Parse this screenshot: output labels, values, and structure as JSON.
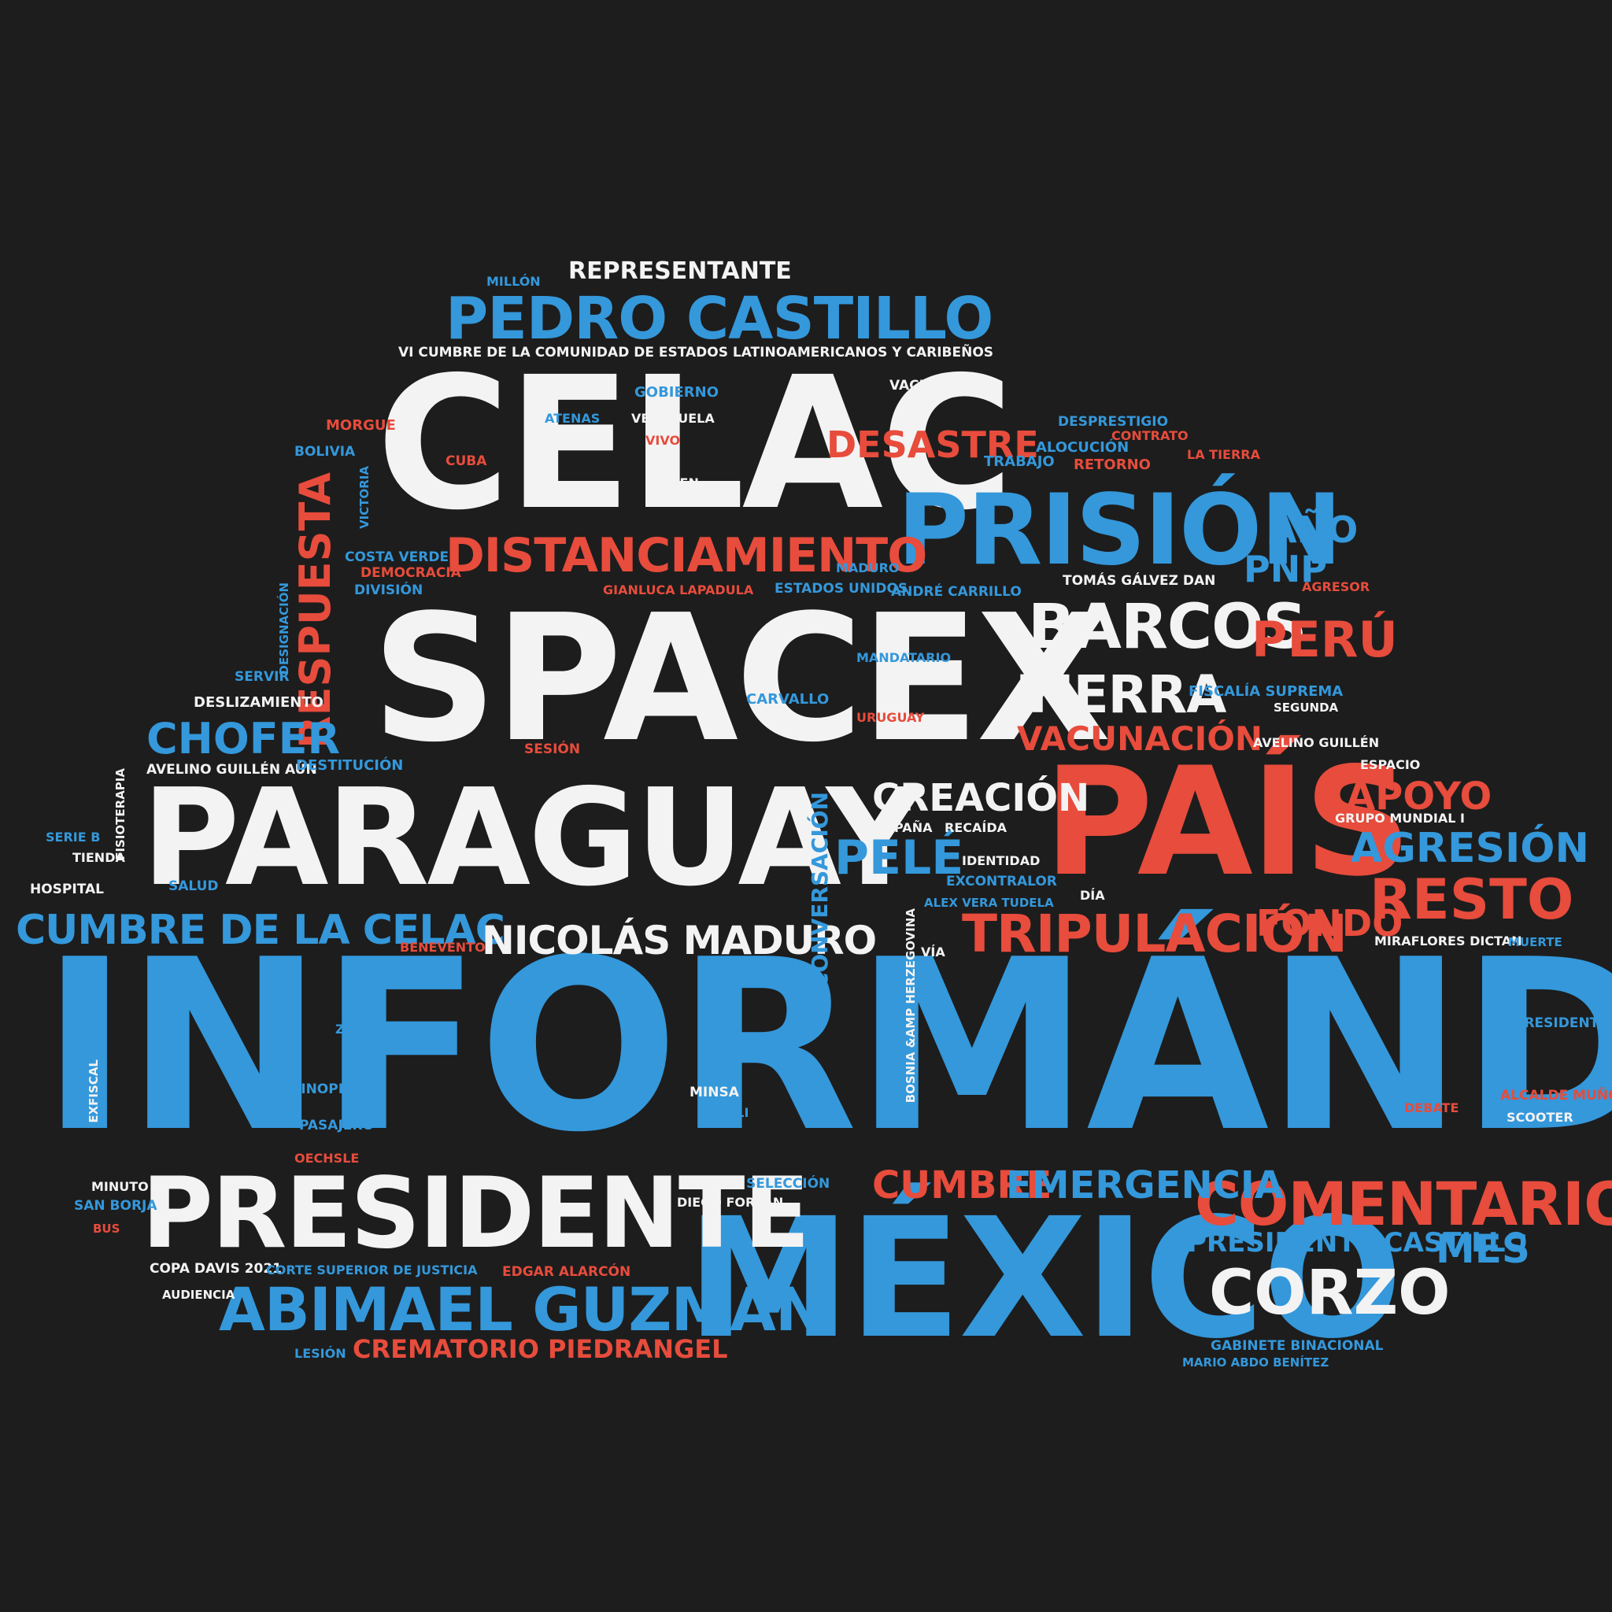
{
  "colors": {
    "background": "#1d1d1d",
    "white": "#f3f3f3",
    "blue": "#3498db",
    "red": "#e74c3c"
  },
  "words": [
    {
      "text": "INFORMÁNDOTE",
      "color": "blue"
    },
    {
      "text": "CELAC",
      "color": "white"
    },
    {
      "text": "SPACEX",
      "color": "white"
    },
    {
      "text": "PARAGUAY",
      "color": "white"
    },
    {
      "text": "PAÍS",
      "color": "red"
    },
    {
      "text": "MÉXICO",
      "color": "blue"
    },
    {
      "text": "PRESIDENTE",
      "color": "white"
    },
    {
      "text": "PRISIÓN",
      "color": "blue"
    },
    {
      "text": "PEDRO CASTILLO",
      "color": "blue"
    },
    {
      "text": "DISTANCIAMIENTO",
      "color": "red"
    },
    {
      "text": "RESPUESTA",
      "color": "red"
    },
    {
      "text": "BARCOS",
      "color": "white"
    },
    {
      "text": "TIERRA",
      "color": "white"
    },
    {
      "text": "PERÚ",
      "color": "red"
    },
    {
      "text": "COMENTARIO",
      "color": "red"
    },
    {
      "text": "ABIMAEL GUZMÁN",
      "color": "blue"
    },
    {
      "text": "CORZO",
      "color": "white"
    },
    {
      "text": "TRIPULACIÓN",
      "color": "red"
    },
    {
      "text": "RESTO",
      "color": "red"
    },
    {
      "text": "CUMBRE DE LA CELAC",
      "color": "blue"
    },
    {
      "text": "NICOLÁS MADURO",
      "color": "white"
    },
    {
      "text": "CHOFER",
      "color": "blue"
    },
    {
      "text": "DESASTRE",
      "color": "red"
    },
    {
      "text": "CREACIÓN",
      "color": "white"
    },
    {
      "text": "PELÉ",
      "color": "blue"
    },
    {
      "text": "AGRESIÓN",
      "color": "blue"
    },
    {
      "text": "APOYO",
      "color": "red"
    },
    {
      "text": "VACUNACIÓN",
      "color": "red"
    },
    {
      "text": "CUMBRE",
      "color": "red"
    },
    {
      "text": "EMERGENCIA",
      "color": "blue"
    },
    {
      "text": "AÑO",
      "color": "blue"
    },
    {
      "text": "PNP",
      "color": "blue"
    },
    {
      "text": "FONDO",
      "color": "red"
    },
    {
      "text": "MES",
      "color": "blue"
    },
    {
      "text": "PRESIDENTE CASTILLO",
      "color": "blue"
    },
    {
      "text": "CREMATORIO PIEDRANGEL",
      "color": "red"
    },
    {
      "text": "REPRESENTANTE",
      "color": "white"
    },
    {
      "text": "CONVERSACIÓN",
      "color": "blue"
    },
    {
      "text": "VI CUMBRE DE LA COMUNIDAD DE ESTADOS LATINOAMERICANOS Y CARIBEÑOS",
      "color": "white"
    },
    {
      "text": "MILLÓN",
      "color": "blue"
    },
    {
      "text": "GOBIERNO",
      "color": "blue"
    },
    {
      "text": "VACUNA",
      "color": "white"
    },
    {
      "text": "ATENAS",
      "color": "blue"
    },
    {
      "text": "VENEZUELA",
      "color": "white"
    },
    {
      "text": "MORGUE",
      "color": "red"
    },
    {
      "text": "VIVO",
      "color": "red"
    },
    {
      "text": "BOLIVIA",
      "color": "blue"
    },
    {
      "text": "CUBA",
      "color": "red"
    },
    {
      "text": "VICTORIA",
      "color": "blue"
    },
    {
      "text": "JOVEN",
      "color": "white"
    },
    {
      "text": "DESPRESTIGIO",
      "color": "blue"
    },
    {
      "text": "CONTRATO",
      "color": "red"
    },
    {
      "text": "ALOCUCIÓN",
      "color": "blue"
    },
    {
      "text": "TRABAJO",
      "color": "blue"
    },
    {
      "text": "RETORNO",
      "color": "red"
    },
    {
      "text": "LA TIERRA",
      "color": "red"
    },
    {
      "text": "COSTA VERDE",
      "color": "blue"
    },
    {
      "text": "DEMOCRACIA",
      "color": "red"
    },
    {
      "text": "DIVISIÓN",
      "color": "blue"
    },
    {
      "text": "MADURO",
      "color": "blue"
    },
    {
      "text": "GIANLUCA LAPADULA",
      "color": "red"
    },
    {
      "text": "ESTADOS UNIDOS",
      "color": "blue"
    },
    {
      "text": "ANDRÉ CARRILLO",
      "color": "blue"
    },
    {
      "text": "TOMÁS GÁLVEZ DAN",
      "color": "white"
    },
    {
      "text": "AGRESOR",
      "color": "red"
    },
    {
      "text": "DESIGNACIÓN",
      "color": "blue"
    },
    {
      "text": "MANDATARIO",
      "color": "blue"
    },
    {
      "text": "SERVIR",
      "color": "blue"
    },
    {
      "text": "FISCALÍA SUPREMA",
      "color": "blue"
    },
    {
      "text": "DESLIZAMIENTO",
      "color": "white"
    },
    {
      "text": "CARVALLO",
      "color": "blue"
    },
    {
      "text": "SEGUNDA",
      "color": "white"
    },
    {
      "text": "URUGUAY",
      "color": "red"
    },
    {
      "text": "AVELINO GUILLÉN",
      "color": "white"
    },
    {
      "text": "SESIÓN",
      "color": "red"
    },
    {
      "text": "AVELINO GUILLÉN AÚN",
      "color": "white"
    },
    {
      "text": "DESTITUCIÓN",
      "color": "blue"
    },
    {
      "text": "ESPACIO",
      "color": "white"
    },
    {
      "text": "FISIOTERAPIA",
      "color": "white"
    },
    {
      "text": "GRUPO MUNDIAL I",
      "color": "white"
    },
    {
      "text": "CAMPAÑA",
      "color": "white"
    },
    {
      "text": "RECAÍDA",
      "color": "white"
    },
    {
      "text": "SERIE B",
      "color": "blue"
    },
    {
      "text": "TIENDA",
      "color": "white"
    },
    {
      "text": "IDENTIDAD",
      "color": "white"
    },
    {
      "text": "EXCONTRALOR",
      "color": "blue"
    },
    {
      "text": "HOSPITAL",
      "color": "white"
    },
    {
      "text": "SALUD",
      "color": "blue"
    },
    {
      "text": "DÍA",
      "color": "white"
    },
    {
      "text": "ALEX VERA TUDELA",
      "color": "blue"
    },
    {
      "text": "BOSNIA &AMP HERZEGOVINA",
      "color": "white"
    },
    {
      "text": "MIRAFLORES DICTAN",
      "color": "white"
    },
    {
      "text": "MUERTE",
      "color": "blue"
    },
    {
      "text": "BENEVENTO",
      "color": "red"
    },
    {
      "text": "VÍA",
      "color": "white"
    },
    {
      "text": "ZOOM",
      "color": "blue"
    },
    {
      "text": "PRESIDENT",
      "color": "blue"
    },
    {
      "text": "EXFISCAL",
      "color": "white"
    },
    {
      "text": "SINOPHARM",
      "color": "blue"
    },
    {
      "text": "MINSA",
      "color": "white"
    },
    {
      "text": "ALCALDE MUÑOZ",
      "color": "red"
    },
    {
      "text": "DEBATE",
      "color": "red"
    },
    {
      "text": "SCOOTER",
      "color": "white"
    },
    {
      "text": "PASAJERO",
      "color": "blue"
    },
    {
      "text": "ASCOLI",
      "color": "blue"
    },
    {
      "text": "OECHSLE",
      "color": "red"
    },
    {
      "text": "MINUTO",
      "color": "white"
    },
    {
      "text": "SELECCIÓN",
      "color": "blue"
    },
    {
      "text": "SAN BORJA",
      "color": "blue"
    },
    {
      "text": "DIEGO FORLÁN",
      "color": "white"
    },
    {
      "text": "BUS",
      "color": "red"
    },
    {
      "text": "COPA DAVIS 2021",
      "color": "white"
    },
    {
      "text": "CORTE SUPERIOR DE JUSTICIA",
      "color": "blue"
    },
    {
      "text": "EDGAR ALARCÓN",
      "color": "red"
    },
    {
      "text": "AUDIENCIA",
      "color": "white"
    },
    {
      "text": "GABINETE BINACIONAL",
      "color": "blue"
    },
    {
      "text": "MARIO ABDO BENÍTEZ",
      "color": "blue"
    },
    {
      "text": "LESIÓN",
      "color": "blue"
    }
  ]
}
